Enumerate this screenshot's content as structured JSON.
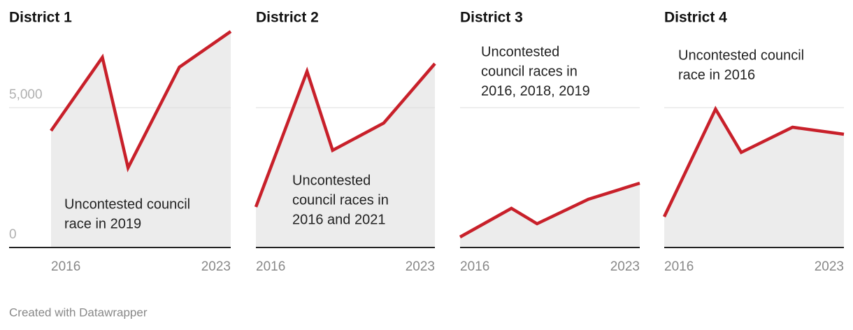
{
  "chart_data": [
    {
      "type": "area",
      "title": "District 1",
      "x": [
        2016,
        2018,
        2019,
        2021,
        2023
      ],
      "values": [
        4175,
        6800,
        2850,
        6450,
        7725
      ],
      "xlim": [
        2016,
        2023
      ],
      "xticks": [
        2016,
        2023
      ],
      "ylim": [
        0,
        8000
      ],
      "yticks": [
        0,
        {
          "value": 5000,
          "label": "5,000"
        }
      ],
      "show_ytick_labels": true,
      "color": "#c8202a",
      "fill": "#ececec",
      "annotation": [
        "Uncontested council",
        "race in 2019"
      ]
    },
    {
      "type": "area",
      "title": "District 2",
      "x": [
        2016,
        2018,
        2019,
        2021,
        2023
      ],
      "values": [
        1450,
        6300,
        3475,
        4450,
        6575
      ],
      "xlim": [
        2016,
        2023
      ],
      "xticks": [
        2016,
        2023
      ],
      "ylim": [
        0,
        8000
      ],
      "yticks": [
        0,
        5000
      ],
      "show_ytick_labels": false,
      "color": "#c8202a",
      "fill": "#ececec",
      "annotation": [
        "Uncontested",
        "council races in",
        "2016 and 2021"
      ]
    },
    {
      "type": "area",
      "title": "District 3",
      "x": [
        2016,
        2018,
        2019,
        2021,
        2023
      ],
      "values": [
        375,
        1400,
        850,
        1725,
        2300
      ],
      "xlim": [
        2016,
        2023
      ],
      "xticks": [
        2016,
        2023
      ],
      "ylim": [
        0,
        8000
      ],
      "yticks": [
        0,
        5000
      ],
      "show_ytick_labels": false,
      "color": "#c8202a",
      "fill": "#ececec",
      "annotation": [
        "Uncontested",
        "council races in",
        "2016, 2018, 2019"
      ]
    },
    {
      "type": "area",
      "title": "District 4",
      "x": [
        2016,
        2018,
        2019,
        2021,
        2023
      ],
      "values": [
        1100,
        4950,
        3400,
        4300,
        4050
      ],
      "xlim": [
        2016,
        2023
      ],
      "xticks": [
        2016,
        2023
      ],
      "ylim": [
        0,
        8000
      ],
      "yticks": [
        0,
        5000
      ],
      "show_ytick_labels": false,
      "color": "#c8202a",
      "fill": "#ececec",
      "annotation": [
        "Uncontested council",
        "race in 2016"
      ]
    }
  ],
  "footer": "Created with Datawrapper"
}
